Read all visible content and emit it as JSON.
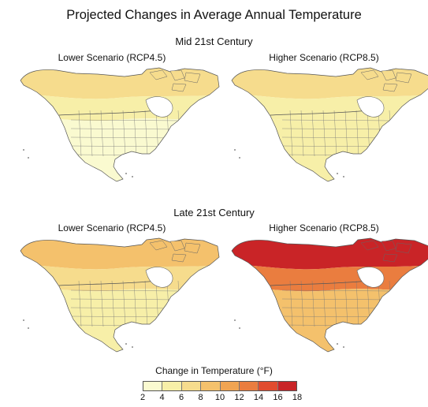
{
  "title": "Projected Changes in Average Annual Temperature",
  "rows": [
    {
      "title": "Mid 21st Century",
      "panels": [
        {
          "title": "Lower Scenario (RCP4.5)",
          "arctic_change": "4–8",
          "canada_change": "4–6",
          "us_change": "2–4"
        },
        {
          "title": "Higher Scenario (RCP8.5)",
          "arctic_change": "6–8",
          "canada_change": "4–6",
          "us_change": "2–6"
        }
      ]
    },
    {
      "title": "Late 21st Century",
      "panels": [
        {
          "title": "Lower Scenario (RCP4.5)",
          "arctic_change": "6–10",
          "canada_change": "4–8",
          "us_change": "2–6"
        },
        {
          "title": "Higher Scenario (RCP8.5)",
          "arctic_change": "14–18",
          "canada_change": "10–14",
          "us_change": "6–10"
        }
      ]
    }
  ],
  "legend": {
    "title": "Change in Temperature (°F)",
    "ticks": [
      "2",
      "4",
      "6",
      "8",
      "10",
      "12",
      "14",
      "16",
      "18"
    ],
    "colors": [
      "#fafad0",
      "#f7efa8",
      "#f6dc8d",
      "#f4c16c",
      "#f0a452",
      "#ea7d3f",
      "#e14c2f",
      "#c92427"
    ]
  }
}
